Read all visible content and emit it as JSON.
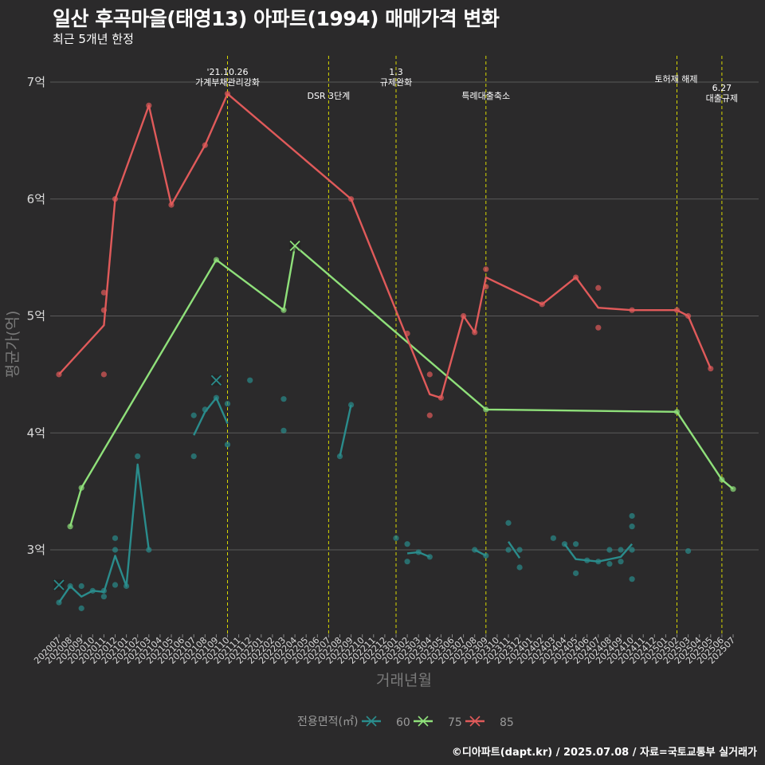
{
  "title": "일산 후곡마을(태영13) 아파트(1994) 매매가격 변화",
  "subtitle": "최근 5개년 한정",
  "caption": "©디아파트(dapt.kr) / 2025.07.08 / 자료=국토교통부 실거래가",
  "chart_data": {
    "type": "line",
    "xlabel": "거래년월",
    "ylabel": "평균가(억)",
    "ylim": [
      2.35,
      7.25
    ],
    "yticks": [
      3,
      4,
      5,
      6,
      7
    ],
    "ytick_labels": [
      "3억",
      "4억",
      "5억",
      "6억",
      "7억"
    ],
    "grid": true,
    "legend_title": "전용면적(㎡)",
    "legend_position": "bottom",
    "categories": [
      "202007",
      "202008",
      "202009",
      "202010",
      "202011",
      "202012",
      "202101",
      "202102",
      "202103",
      "202104",
      "202105",
      "202106",
      "202107",
      "202108",
      "202109",
      "202110",
      "202111",
      "202112",
      "202201",
      "202202",
      "202203",
      "202204",
      "202205",
      "202206",
      "202207",
      "202208",
      "202209",
      "202210",
      "202211",
      "202212",
      "202301",
      "202302",
      "202303",
      "202304",
      "202305",
      "202306",
      "202307",
      "202308",
      "202309",
      "202310",
      "202311",
      "202312",
      "202401",
      "202402",
      "202403",
      "202404",
      "202405",
      "202406",
      "202407",
      "202408",
      "202409",
      "202410",
      "202411",
      "202412",
      "202501",
      "202502",
      "202503",
      "202504",
      "202505",
      "202506",
      "202507"
    ],
    "events": [
      {
        "x": "202110",
        "label_lines": [
          "'21.10.26",
          "가계부채관리강화"
        ]
      },
      {
        "x": "202207",
        "label_lines": [
          "DSR 3단계"
        ]
      },
      {
        "x": "202301",
        "label_lines": [
          "1.3",
          "규제완화"
        ]
      },
      {
        "x": "202309",
        "label_lines": [
          "특례대출축소"
        ]
      },
      {
        "x": "202502",
        "label_lines": [
          "토허제 해제"
        ]
      },
      {
        "x": "202506",
        "label_lines": [
          "6.27",
          "대출규제"
        ]
      }
    ],
    "series": [
      {
        "name": "60",
        "color": "#2a8c8c",
        "line": [
          [
            "202007",
            2.55
          ],
          [
            "202008",
            2.69
          ],
          [
            "202009",
            2.6
          ],
          [
            "202010",
            2.65
          ],
          [
            "202011",
            2.64
          ],
          [
            "202012",
            2.95
          ],
          [
            "202101",
            2.69
          ],
          [
            "202102",
            3.73
          ],
          [
            "202103",
            3.0
          ],
          null,
          [
            "202107",
            3.98
          ],
          [
            "202108",
            4.18
          ],
          [
            "202109",
            4.3
          ],
          [
            "202110",
            4.08
          ],
          null,
          [
            "202208",
            3.8
          ],
          [
            "202209",
            4.24
          ],
          null,
          [
            "202302",
            2.97
          ],
          [
            "202303",
            2.98
          ],
          [
            "202304",
            2.94
          ],
          null,
          [
            "202308",
            3.0
          ],
          [
            "202309",
            2.95
          ],
          null,
          [
            "202311",
            3.07
          ],
          [
            "202312",
            2.93
          ],
          null,
          [
            "202404",
            3.05
          ],
          [
            "202405",
            2.92
          ],
          [
            "202406",
            2.91
          ],
          [
            "202407",
            2.9
          ],
          [
            "202408",
            2.92
          ],
          [
            "202409",
            2.94
          ],
          [
            "202410",
            3.05
          ]
        ],
        "points": [
          [
            "202007",
            2.55
          ],
          [
            "202008",
            2.69
          ],
          [
            "202009",
            2.5
          ],
          [
            "202009",
            2.69
          ],
          [
            "202010",
            2.65
          ],
          [
            "202011",
            2.6
          ],
          [
            "202011",
            2.65
          ],
          [
            "202012",
            2.7
          ],
          [
            "202012",
            3.0
          ],
          [
            "202012",
            3.1
          ],
          [
            "202101",
            2.69
          ],
          [
            "202102",
            3.8
          ],
          [
            "202103",
            3.0
          ],
          [
            "202107",
            3.8
          ],
          [
            "202107",
            4.15
          ],
          [
            "202108",
            4.2
          ],
          [
            "202109",
            4.3
          ],
          [
            "202110",
            3.9
          ],
          [
            "202110",
            4.25
          ],
          [
            "202112",
            4.45
          ],
          [
            "202203",
            4.29
          ],
          [
            "202203",
            4.02
          ],
          [
            "202208",
            3.8
          ],
          [
            "202209",
            4.24
          ],
          [
            "202301",
            3.1
          ],
          [
            "202302",
            2.9
          ],
          [
            "202302",
            3.05
          ],
          [
            "202303",
            2.98
          ],
          [
            "202304",
            2.94
          ],
          [
            "202308",
            3.0
          ],
          [
            "202309",
            2.95
          ],
          [
            "202311",
            3.23
          ],
          [
            "202311",
            3.0
          ],
          [
            "202312",
            2.85
          ],
          [
            "202312",
            3.0
          ],
          [
            "202403",
            3.1
          ],
          [
            "202404",
            3.05
          ],
          [
            "202405",
            2.8
          ],
          [
            "202405",
            3.05
          ],
          [
            "202406",
            2.91
          ],
          [
            "202407",
            2.9
          ],
          [
            "202408",
            2.88
          ],
          [
            "202408",
            3.0
          ],
          [
            "202409",
            2.9
          ],
          [
            "202409",
            3.0
          ],
          [
            "202410",
            3.29
          ],
          [
            "202410",
            3.2
          ],
          [
            "202410",
            3.0
          ],
          [
            "202410",
            2.75
          ],
          [
            "202503",
            2.99
          ]
        ],
        "markers_x": [
          [
            "202007",
            2.7
          ],
          [
            "202109",
            4.45
          ]
        ]
      },
      {
        "name": "75",
        "color": "#8fe07a",
        "line": [
          [
            "202008",
            3.2
          ],
          [
            "202009",
            3.53
          ],
          [
            "202109",
            5.48
          ],
          [
            "202203",
            5.05
          ],
          [
            "202204",
            5.6
          ],
          [
            "202309",
            4.2
          ],
          [
            "202502",
            4.18
          ],
          [
            "202506",
            3.6
          ],
          [
            "202507",
            3.52
          ]
        ],
        "points": [
          [
            "202008",
            3.2
          ],
          [
            "202009",
            3.53
          ],
          [
            "202109",
            5.48
          ],
          [
            "202203",
            5.05
          ],
          [
            "202309",
            4.2
          ],
          [
            "202502",
            4.18
          ],
          [
            "202506",
            3.6
          ],
          [
            "202507",
            3.52
          ]
        ],
        "markers_x": [
          [
            "202204",
            5.6
          ]
        ]
      },
      {
        "name": "85",
        "color": "#e05a5a",
        "line": [
          [
            "202007",
            4.5
          ],
          [
            "202011",
            4.92
          ],
          [
            "202012",
            6.0
          ],
          [
            "202103",
            6.8
          ],
          [
            "202105",
            5.95
          ],
          [
            "202108",
            6.46
          ],
          [
            "202110",
            6.9
          ],
          [
            "202209",
            6.0
          ],
          [
            "202304",
            4.33
          ],
          [
            "202305",
            4.3
          ],
          [
            "202307",
            5.0
          ],
          [
            "202308",
            4.86
          ],
          [
            "202309",
            5.33
          ],
          [
            "202402",
            5.1
          ],
          [
            "202405",
            5.33
          ],
          [
            "202407",
            5.07
          ],
          [
            "202410",
            5.05
          ],
          [
            "202502",
            5.05
          ],
          [
            "202503",
            5.0
          ],
          [
            "202505",
            4.55
          ]
        ],
        "points": [
          [
            "202007",
            4.5
          ],
          [
            "202011",
            5.2
          ],
          [
            "202011",
            5.05
          ],
          [
            "202011",
            4.5
          ],
          [
            "202012",
            6.0
          ],
          [
            "202103",
            6.8
          ],
          [
            "202105",
            5.95
          ],
          [
            "202108",
            6.46
          ],
          [
            "202110",
            6.9
          ],
          [
            "202209",
            6.0
          ],
          [
            "202302",
            4.85
          ],
          [
            "202304",
            4.5
          ],
          [
            "202304",
            4.15
          ],
          [
            "202305",
            4.3
          ],
          [
            "202307",
            5.0
          ],
          [
            "202308",
            4.86
          ],
          [
            "202309",
            5.4
          ],
          [
            "202309",
            5.25
          ],
          [
            "202402",
            5.1
          ],
          [
            "202405",
            5.33
          ],
          [
            "202407",
            5.24
          ],
          [
            "202407",
            4.9
          ],
          [
            "202410",
            5.05
          ],
          [
            "202502",
            5.05
          ],
          [
            "202503",
            5.0
          ],
          [
            "202505",
            4.55
          ]
        ],
        "markers_x": []
      }
    ]
  }
}
